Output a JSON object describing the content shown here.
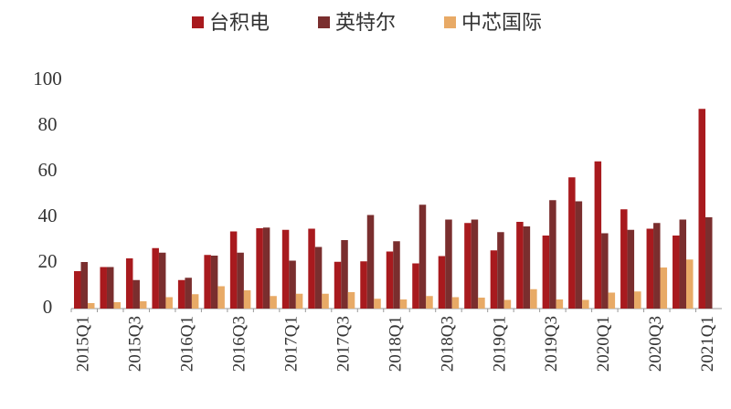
{
  "chart_data": {
    "type": "bar",
    "categories": [
      "2015Q1",
      null,
      "2015Q3",
      null,
      "2016Q1",
      null,
      "2016Q3",
      null,
      "2017Q1",
      null,
      "2017Q3",
      null,
      "2018Q1",
      null,
      "2018Q3",
      null,
      "2019Q1",
      null,
      "2019Q3",
      null,
      "2020Q1",
      null,
      "2020Q3",
      null,
      "2021Q1"
    ],
    "series": [
      {
        "name": "台积电",
        "color": "#a81a1e",
        "values": [
          16.4,
          18.2,
          22,
          26.5,
          12.5,
          23.5,
          33.8,
          35.2,
          34.5,
          35,
          20.5,
          20.7,
          25,
          19.8,
          23,
          37.5,
          25.5,
          38,
          32,
          57.5,
          64.5,
          43.5,
          35,
          32,
          87.5
        ]
      },
      {
        "name": "英特尔",
        "color": "#7a2e2e",
        "values": [
          20.4,
          18.2,
          12.5,
          24.5,
          13.5,
          23.2,
          24.5,
          35.5,
          21,
          27,
          30,
          41,
          29.5,
          45.5,
          39,
          39,
          33.5,
          36,
          47.5,
          47,
          33,
          34.5,
          37.5,
          39,
          40
        ]
      },
      {
        "name": "中芯国际",
        "color": "#e8aa66",
        "values": [
          2.4,
          2.8,
          3.2,
          5,
          6.3,
          9.8,
          8,
          5.5,
          6.5,
          6.5,
          7.2,
          4.3,
          4,
          5.5,
          5,
          4.8,
          3.8,
          8.5,
          4,
          3.8,
          7,
          7.5,
          18,
          21.5,
          null
        ]
      }
    ],
    "ylim": [
      0,
      100
    ],
    "yticks": [
      0,
      20,
      40,
      60,
      80,
      100
    ],
    "grid": false
  }
}
